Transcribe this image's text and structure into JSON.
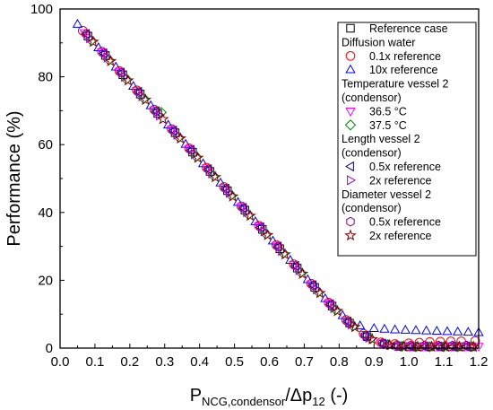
{
  "chart_data": {
    "type": "scatter",
    "title": "",
    "ylabel": "Performance (%)",
    "xlabel": {
      "main": "P",
      "sub1": "NCG,condensor",
      "mid": "/Δp",
      "sub2": "12",
      "tail": " (-)"
    },
    "xlim": [
      0.0,
      1.2
    ],
    "ylim": [
      0,
      100
    ],
    "xticks": [
      "0.0",
      "0.1",
      "0.2",
      "0.3",
      "0.4",
      "0.5",
      "0.6",
      "0.7",
      "0.8",
      "0.9",
      "1.0",
      "1.1",
      "1.2"
    ],
    "yticks": [
      "0",
      "20",
      "40",
      "60",
      "80",
      "100"
    ],
    "grid": false,
    "legend_position": "top-right",
    "legend": [
      {
        "kind": "entry",
        "label": "Reference case",
        "marker": "square",
        "color": "#000000"
      },
      {
        "kind": "group",
        "label": "Diffusion water"
      },
      {
        "kind": "entry",
        "label": "0.1x reference",
        "marker": "circle",
        "color": "#ff0000"
      },
      {
        "kind": "entry",
        "label": "10x reference",
        "marker": "triangle-up",
        "color": "#0000ff"
      },
      {
        "kind": "group",
        "label": "Temperature vessel 2"
      },
      {
        "kind": "group",
        "label": "(condensor)"
      },
      {
        "kind": "entry",
        "label": "36.5 °C",
        "marker": "triangle-down",
        "color": "#ff00ff"
      },
      {
        "kind": "entry",
        "label": "37.5 °C",
        "marker": "diamond",
        "color": "#008000"
      },
      {
        "kind": "group",
        "label": "Length vessel 2"
      },
      {
        "kind": "group",
        "label": "(condensor)"
      },
      {
        "kind": "entry",
        "label": "0.5x reference",
        "marker": "triangle-left",
        "color": "#000080"
      },
      {
        "kind": "entry",
        "label": "2x reference",
        "marker": "triangle-right",
        "color": "#9900cc"
      },
      {
        "kind": "group",
        "label": "Diameter vessel 2"
      },
      {
        "kind": "group",
        "label": "(condensor)"
      },
      {
        "kind": "entry",
        "label": "0.5x reference",
        "marker": "hexagon",
        "color": "#800080"
      },
      {
        "kind": "entry",
        "label": "2x reference",
        "marker": "star",
        "color": "#800000"
      }
    ],
    "series": [
      {
        "marker": "square",
        "color": "#000000",
        "x": [
          0.08,
          0.13,
          0.18,
          0.23,
          0.28,
          0.33,
          0.38,
          0.43,
          0.48,
          0.53,
          0.58,
          0.63,
          0.68,
          0.73,
          0.78,
          0.83,
          0.88,
          0.93,
          0.97,
          1.0,
          1.03,
          1.06,
          1.09,
          1.12,
          1.15,
          1.18
        ],
        "y": [
          92,
          86.3,
          80.6,
          74.9,
          69.2,
          63.5,
          57.8,
          52.1,
          46.4,
          40.7,
          35,
          29.3,
          23.6,
          17.9,
          12.4,
          7.4,
          3.4,
          1.1,
          0.5,
          0.4,
          0.4,
          0.4,
          0.4,
          0.4,
          0.4,
          0.4
        ]
      },
      {
        "marker": "circle",
        "color": "#ff0000",
        "x": [
          0.065,
          0.12,
          0.17,
          0.22,
          0.27,
          0.32,
          0.37,
          0.42,
          0.47,
          0.52,
          0.57,
          0.62,
          0.67,
          0.72,
          0.77,
          0.82,
          0.87,
          0.92,
          0.96,
          1.0,
          1.03,
          1.06,
          1.09,
          1.12,
          1.15,
          1.19
        ],
        "y": [
          93.6,
          87.4,
          81.7,
          76,
          70.3,
          64.6,
          58.9,
          53.2,
          47.5,
          41.8,
          36.1,
          30.4,
          24.7,
          19,
          13.4,
          8.3,
          4.2,
          1.7,
          1.2,
          1.4,
          1.6,
          1.8,
          1.9,
          2.0,
          2.0,
          2.1
        ]
      },
      {
        "marker": "triangle-up",
        "color": "#0000ff",
        "x": [
          0.05,
          0.11,
          0.16,
          0.21,
          0.26,
          0.31,
          0.36,
          0.41,
          0.46,
          0.51,
          0.56,
          0.61,
          0.66,
          0.71,
          0.76,
          0.81,
          0.86,
          0.9,
          0.93,
          0.96,
          0.99,
          1.02,
          1.05,
          1.08,
          1.11,
          1.14,
          1.17,
          1.2
        ],
        "y": [
          95.5,
          88.6,
          82.9,
          77.2,
          71.5,
          65.8,
          60.1,
          54.4,
          48.7,
          43,
          37.3,
          31.6,
          25.9,
          20.2,
          14.6,
          9.6,
          6.6,
          5.8,
          5.6,
          5.4,
          5.3,
          5.2,
          5.1,
          5.0,
          4.9,
          4.8,
          4.7,
          4.6
        ]
      },
      {
        "marker": "triangle-down",
        "color": "#ff00ff",
        "x": [
          0.07,
          0.12,
          0.17,
          0.22,
          0.27,
          0.32,
          0.37,
          0.42,
          0.47,
          0.52,
          0.57,
          0.62,
          0.67,
          0.72,
          0.77,
          0.82,
          0.87,
          0.92,
          0.96,
          1.0,
          1.04,
          1.08,
          1.12,
          1.16,
          1.2
        ],
        "y": [
          93,
          87.3,
          81.6,
          75.9,
          70.2,
          64.5,
          58.8,
          53.1,
          47.4,
          41.7,
          36,
          30.3,
          24.6,
          18.9,
          13.3,
          8.2,
          4,
          1.5,
          0.7,
          0.5,
          0.5,
          0.5,
          0.5,
          0.5,
          0.5
        ]
      },
      {
        "marker": "diamond",
        "color": "#008000",
        "x": [
          0.09,
          0.14,
          0.19,
          0.24,
          0.29,
          0.34,
          0.39,
          0.44,
          0.49,
          0.54,
          0.59,
          0.64,
          0.69,
          0.74,
          0.79,
          0.84,
          0.89,
          0.94,
          0.98,
          1.02,
          1.06,
          1.1,
          1.14,
          1.18
        ],
        "y": [
          90.7,
          85,
          79.3,
          73.6,
          69.5,
          62.2,
          56.5,
          50.8,
          45.1,
          39.4,
          33.7,
          28,
          22.3,
          16.6,
          11.3,
          6.5,
          2.8,
          1,
          0.5,
          0.4,
          0.4,
          0.4,
          0.4,
          0.4
        ]
      },
      {
        "marker": "triangle-left",
        "color": "#000080",
        "x": [
          0.075,
          0.125,
          0.175,
          0.225,
          0.275,
          0.325,
          0.375,
          0.425,
          0.475,
          0.525,
          0.575,
          0.625,
          0.675,
          0.725,
          0.775,
          0.825,
          0.875,
          0.925,
          0.965,
          1.005,
          1.045,
          1.085,
          1.125,
          1.165
        ],
        "y": [
          92.6,
          86.9,
          81.2,
          75.5,
          69.8,
          64.1,
          58.4,
          52.7,
          47,
          41.3,
          35.6,
          29.9,
          24.2,
          18.5,
          12.9,
          7.8,
          3.7,
          1.3,
          0.6,
          0.5,
          0.5,
          0.5,
          0.5,
          0.5
        ]
      },
      {
        "marker": "triangle-right",
        "color": "#9900cc",
        "x": [
          0.085,
          0.135,
          0.185,
          0.235,
          0.285,
          0.335,
          0.385,
          0.435,
          0.485,
          0.535,
          0.585,
          0.635,
          0.685,
          0.735,
          0.785,
          0.835,
          0.885,
          0.935,
          0.975,
          1.015,
          1.055,
          1.095,
          1.135,
          1.175
        ],
        "y": [
          91.4,
          85.7,
          80,
          74.3,
          68.6,
          62.9,
          57.2,
          51.5,
          45.8,
          40.1,
          34.4,
          28.7,
          23,
          17.3,
          11.8,
          7,
          3.1,
          1.1,
          0.6,
          0.5,
          0.5,
          0.5,
          0.5,
          0.5
        ]
      },
      {
        "marker": "hexagon",
        "color": "#800080",
        "x": [
          0.075,
          0.125,
          0.175,
          0.225,
          0.275,
          0.325,
          0.375,
          0.425,
          0.475,
          0.525,
          0.575,
          0.625,
          0.675,
          0.725,
          0.775,
          0.825,
          0.875,
          0.925,
          0.965,
          1.005,
          1.045,
          1.085,
          1.125,
          1.165
        ],
        "y": [
          92.6,
          86.9,
          81.2,
          75.5,
          69.8,
          64.1,
          58.4,
          52.7,
          47,
          41.3,
          35.6,
          29.9,
          24.2,
          18.5,
          12.9,
          7.8,
          3.7,
          1.5,
          0.9,
          0.8,
          0.8,
          0.8,
          0.8,
          0.8
        ]
      },
      {
        "marker": "star",
        "color": "#800000",
        "x": [
          0.095,
          0.145,
          0.195,
          0.245,
          0.295,
          0.345,
          0.395,
          0.445,
          0.495,
          0.545,
          0.595,
          0.645,
          0.695,
          0.745,
          0.795,
          0.845,
          0.895,
          0.945,
          0.985,
          1.025,
          1.065,
          1.105,
          1.145,
          1.185
        ],
        "y": [
          90.3,
          84.6,
          78.9,
          73.2,
          67.5,
          61.8,
          56.1,
          50.4,
          44.7,
          39,
          33.3,
          27.6,
          21.9,
          16.2,
          10.9,
          6.2,
          2.6,
          0.9,
          0.5,
          0.4,
          0.4,
          0.4,
          0.4,
          0.4
        ]
      }
    ]
  }
}
